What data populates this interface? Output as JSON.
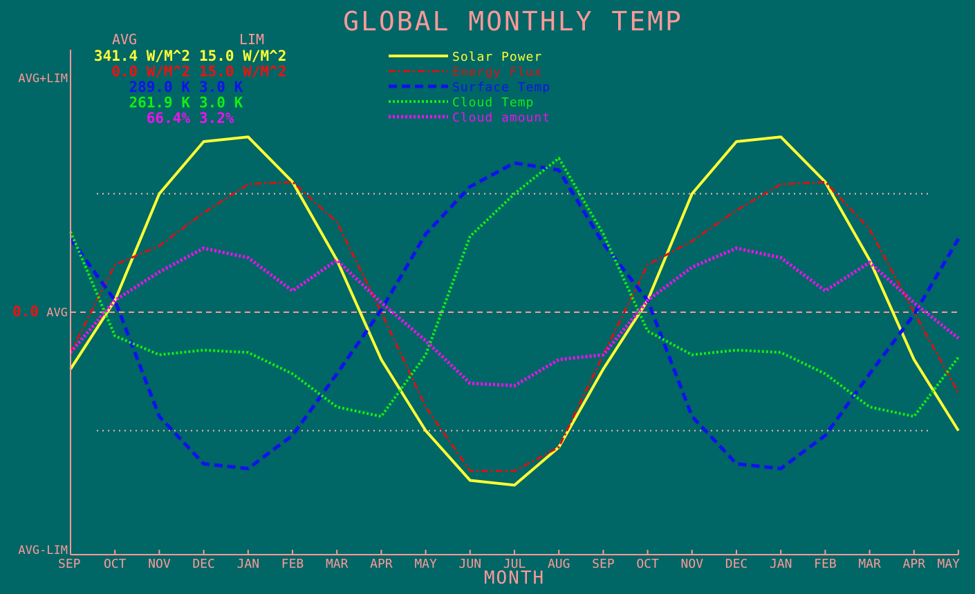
{
  "chart_data": {
    "type": "line",
    "title": "GLOBAL MONTHLY TEMP",
    "xlabel": "MONTH",
    "ylabel": "",
    "x": [
      "SEP",
      "OCT",
      "NOV",
      "DEC",
      "JAN",
      "FEB",
      "MAR",
      "APR",
      "MAY",
      "JUN",
      "JUL",
      "AUG",
      "SEP",
      "OCT",
      "NOV",
      "DEC",
      "JAN",
      "FEB",
      "MAR",
      "APR",
      "MAY"
    ],
    "yticks": {
      "top": "AVG+LIM",
      "mid": "AVG",
      "bottom": "AVG-LIM",
      "mid_value": "0.0"
    },
    "ylim": [
      -1,
      1
    ],
    "reference_lines": [
      0.5,
      -0.5
    ],
    "grid": false,
    "legend_position": "top-center",
    "stats_header": {
      "avg": "AVG",
      "lim": "LIM"
    },
    "stats": [
      {
        "avg": "341.4 W/M^2",
        "lim": "15.0 W/M^2",
        "color": "#ffff33"
      },
      {
        "avg": "0.0 W/M^2",
        "lim": "15.0 W/M^2",
        "color": "#ee1111"
      },
      {
        "avg": "289.0 K",
        "lim": "3.0 K",
        "color": "#1111ee"
      },
      {
        "avg": "261.9 K",
        "lim": "3.0 K",
        "color": "#11ee11"
      },
      {
        "avg": "66.4%",
        "lim": "3.2%",
        "color": "#ee11ee"
      }
    ],
    "series": [
      {
        "name": "Solar Power",
        "color": "#ffff33",
        "style": "solid",
        "width": 4,
        "values": [
          -0.24,
          0.05,
          0.5,
          0.72,
          0.74,
          0.55,
          0.22,
          -0.2,
          -0.5,
          -0.71,
          -0.73,
          -0.57,
          -0.24,
          0.05,
          0.5,
          0.72,
          0.74,
          0.55,
          0.22,
          -0.2,
          -0.5
        ]
      },
      {
        "name": "Energy Flux",
        "color": "#dd1111",
        "style": "dashdot",
        "width": 3,
        "values": [
          -0.17,
          0.2,
          0.28,
          0.42,
          0.54,
          0.55,
          0.38,
          0.0,
          -0.4,
          -0.67,
          -0.67,
          -0.57,
          -0.18,
          0.2,
          0.3,
          0.43,
          0.54,
          0.55,
          0.35,
          0.0,
          -0.34
        ]
      },
      {
        "name": "Surface Temp",
        "color": "#1111ee",
        "style": "dash",
        "width": 5,
        "values": [
          0.31,
          0.05,
          -0.44,
          -0.64,
          -0.66,
          -0.52,
          -0.26,
          0.01,
          0.33,
          0.53,
          0.63,
          0.6,
          0.29,
          0.05,
          -0.44,
          -0.64,
          -0.66,
          -0.52,
          -0.26,
          -0.01,
          0.31
        ]
      },
      {
        "name": "Cloud Temp",
        "color": "#11ee11",
        "style": "dot",
        "width": 4,
        "values": [
          0.34,
          -0.1,
          -0.18,
          -0.16,
          -0.17,
          -0.26,
          -0.4,
          -0.44,
          -0.18,
          0.32,
          0.5,
          0.65,
          0.33,
          -0.08,
          -0.18,
          -0.16,
          -0.17,
          -0.26,
          -0.4,
          -0.44,
          -0.19
        ]
      },
      {
        "name": "Cloud amount",
        "color": "#ee11ee",
        "style": "dot",
        "width": 5,
        "values": [
          -0.17,
          0.05,
          0.17,
          0.27,
          0.23,
          0.09,
          0.22,
          0.04,
          -0.12,
          -0.3,
          -0.31,
          -0.2,
          -0.18,
          0.05,
          0.19,
          0.27,
          0.23,
          0.09,
          0.21,
          0.04,
          -0.11
        ]
      }
    ]
  }
}
